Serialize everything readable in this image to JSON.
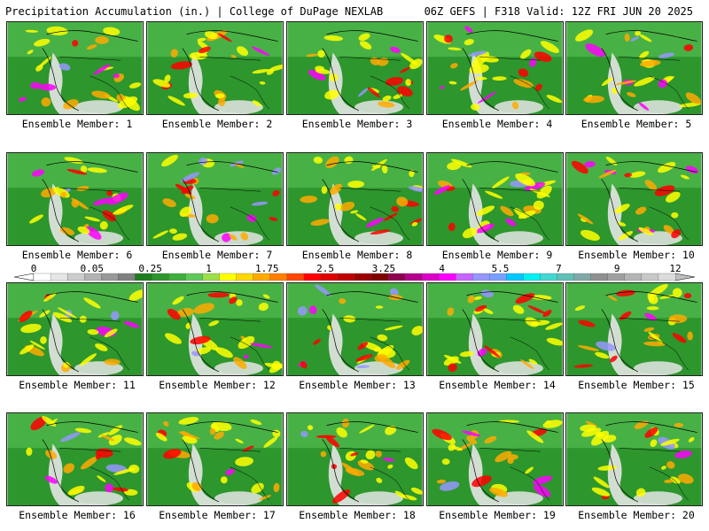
{
  "header": {
    "title_left": "Precipitation Accumulation (in.) | College of DuPage NEXLAB",
    "title_right": "06Z GEFS | F318 Valid: 12Z FRI JUN 20 2025"
  },
  "panels": [
    {
      "label": "Ensemble Member: 1"
    },
    {
      "label": "Ensemble Member: 2"
    },
    {
      "label": "Ensemble Member: 3"
    },
    {
      "label": "Ensemble Member: 4"
    },
    {
      "label": "Ensemble Member: 5"
    },
    {
      "label": "Ensemble Member: 6"
    },
    {
      "label": "Ensemble Member: 7"
    },
    {
      "label": "Ensemble Member: 8"
    },
    {
      "label": "Ensemble Member: 9"
    },
    {
      "label": "Ensemble Member: 10"
    },
    {
      "label": "Ensemble Member: 11"
    },
    {
      "label": "Ensemble Member: 12"
    },
    {
      "label": "Ensemble Member: 13"
    },
    {
      "label": "Ensemble Member: 14"
    },
    {
      "label": "Ensemble Member: 15"
    },
    {
      "label": "Ensemble Member: 16"
    },
    {
      "label": "Ensemble Member: 17"
    },
    {
      "label": "Ensemble Member: 18"
    },
    {
      "label": "Ensemble Member: 19"
    },
    {
      "label": "Ensemble Member: 20"
    }
  ],
  "colorbar": {
    "tick_labels": [
      "0",
      "0.05",
      "0.25",
      "1",
      "1.75",
      "2.5",
      "3.25",
      "4",
      "5.5",
      "7",
      "9",
      "12"
    ],
    "colors": [
      "#ffffff",
      "#e6e6e6",
      "#cccccc",
      "#b3b3b3",
      "#999999",
      "#808080",
      "#1e7d1e",
      "#2d962d",
      "#3caf3c",
      "#5fc85a",
      "#9be04b",
      "#ffff00",
      "#ffd700",
      "#ffaa00",
      "#ff7f00",
      "#ff4500",
      "#ff0000",
      "#e00000",
      "#c00000",
      "#9c0000",
      "#800000",
      "#900050",
      "#b4008c",
      "#dc00c8",
      "#ff00ff",
      "#c864ff",
      "#9696ff",
      "#78a0ff",
      "#00c8ff",
      "#00f0f0",
      "#40d8d0",
      "#60c0b8",
      "#80a8a8",
      "#909090",
      "#a0a0a0",
      "#b4b4b4",
      "#c8c8c8",
      "#dcdcdc"
    ],
    "map_colors": {
      "ocean_green": "#2d962d",
      "land_green": "#5fc85a",
      "dry_white": "#e6e6e6",
      "yellow": "#ffff00",
      "orange": "#ffaa00",
      "red": "#ff0000",
      "magenta": "#ff00ff",
      "blue": "#9696ff",
      "border": "#000000"
    }
  }
}
